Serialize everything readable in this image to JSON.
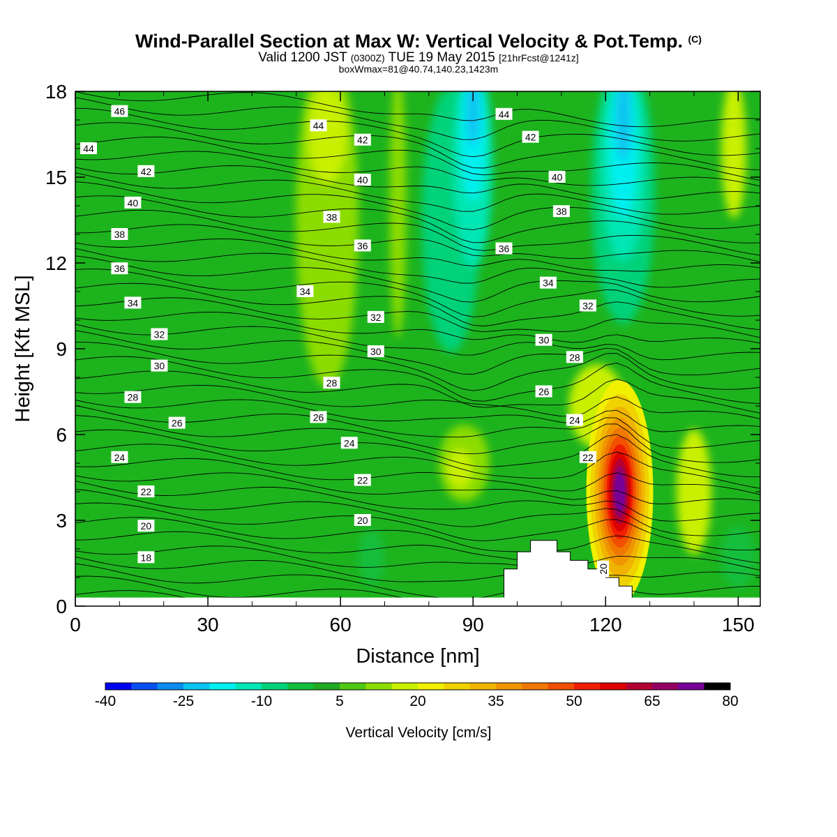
{
  "title": {
    "main": "Wind-Parallel Section at Max W: Vertical Velocity & Pot.Temp.",
    "copyright": "(C)",
    "valid_prefix": "Valid 1200 JST",
    "utc": "(0300Z)",
    "valid_date": "TUE 19 May 2015",
    "forecast": "[21hrFcst@1241z]",
    "box_info": "boxWmax=81@40.74,140.23,1423m"
  },
  "colors": {
    "background_field": "#1db31d",
    "palette": [
      "#0000f0",
      "#0a50f0",
      "#0a8cf0",
      "#0ac3f0",
      "#00f0f0",
      "#00e6b4",
      "#00d27a",
      "#14be3c",
      "#22aa22",
      "#50c814",
      "#8cdc00",
      "#c8f000",
      "#f0f000",
      "#f0d200",
      "#f0b400",
      "#f09600",
      "#f07800",
      "#f05000",
      "#f01e00",
      "#dc0000",
      "#b40032",
      "#960064",
      "#780096"
    ]
  },
  "chart_data": {
    "type": "heatmap",
    "xlabel": "Distance [nm]",
    "ylabel": "Height [Kft MSL]",
    "xlim": [
      0,
      155
    ],
    "ylim": [
      0,
      18
    ],
    "xticks": [
      0,
      30,
      60,
      90,
      120,
      150
    ],
    "yticks": [
      0,
      3,
      6,
      9,
      12,
      15,
      18
    ],
    "colorbar": {
      "label": "Vertical Velocity [cm/s]",
      "min": -40,
      "max": 80,
      "step": 5,
      "tick_labels": [
        -40,
        -25,
        -10,
        5,
        20,
        35,
        50,
        65,
        80
      ]
    },
    "features": [
      {
        "kind": "downdraft",
        "x": 90,
        "y_top": 18,
        "y_bottom": 8,
        "min_w": -30
      },
      {
        "kind": "downdraft",
        "x": 124,
        "y_top": 18,
        "y_bottom": 10,
        "min_w": -30
      },
      {
        "kind": "updraft",
        "x": 123,
        "y": 4.0,
        "max_w": 81
      },
      {
        "kind": "updraft",
        "x": 57,
        "y": 16,
        "max_w": 15
      },
      {
        "kind": "updraft",
        "x": 87,
        "y": 5,
        "max_w": 15
      }
    ],
    "terrain": [
      [
        97,
        0
      ],
      [
        97,
        1.3
      ],
      [
        100,
        1.3
      ],
      [
        100,
        1.9
      ],
      [
        103,
        1.9
      ],
      [
        103,
        2.3
      ],
      [
        109,
        2.3
      ],
      [
        109,
        1.9
      ],
      [
        112,
        1.9
      ],
      [
        112,
        1.6
      ],
      [
        116,
        1.6
      ],
      [
        116,
        1.3
      ],
      [
        120,
        1.3
      ],
      [
        120,
        1.0
      ],
      [
        123,
        1.0
      ],
      [
        123,
        0.7
      ],
      [
        126,
        0.7
      ],
      [
        126,
        0.3
      ],
      [
        126,
        0
      ]
    ],
    "contour_labels": [
      {
        "text": "46",
        "x": 10,
        "y": 17.3
      },
      {
        "text": "44",
        "x": 3,
        "y": 16.0
      },
      {
        "text": "42",
        "x": 16,
        "y": 15.2
      },
      {
        "text": "40",
        "x": 13,
        "y": 14.1
      },
      {
        "text": "38",
        "x": 10,
        "y": 13.0
      },
      {
        "text": "36",
        "x": 10,
        "y": 11.8
      },
      {
        "text": "34",
        "x": 13,
        "y": 10.6
      },
      {
        "text": "32",
        "x": 19,
        "y": 9.5
      },
      {
        "text": "30",
        "x": 19,
        "y": 8.4
      },
      {
        "text": "28",
        "x": 13,
        "y": 7.3
      },
      {
        "text": "26",
        "x": 23,
        "y": 6.4
      },
      {
        "text": "24",
        "x": 10,
        "y": 5.2
      },
      {
        "text": "22",
        "x": 16,
        "y": 4.0
      },
      {
        "text": "20",
        "x": 16,
        "y": 2.8
      },
      {
        "text": "18",
        "x": 16,
        "y": 1.7
      },
      {
        "text": "44",
        "x": 55,
        "y": 16.8
      },
      {
        "text": "42",
        "x": 65,
        "y": 16.3
      },
      {
        "text": "40",
        "x": 65,
        "y": 14.9
      },
      {
        "text": "38",
        "x": 58,
        "y": 13.6
      },
      {
        "text": "36",
        "x": 65,
        "y": 12.6
      },
      {
        "text": "34",
        "x": 52,
        "y": 11.0
      },
      {
        "text": "32",
        "x": 68,
        "y": 10.1
      },
      {
        "text": "30",
        "x": 68,
        "y": 8.9
      },
      {
        "text": "28",
        "x": 58,
        "y": 7.8
      },
      {
        "text": "26",
        "x": 55,
        "y": 6.6
      },
      {
        "text": "24",
        "x": 62,
        "y": 5.7
      },
      {
        "text": "22",
        "x": 65,
        "y": 4.4
      },
      {
        "text": "20",
        "x": 65,
        "y": 3.0
      },
      {
        "text": "44",
        "x": 97,
        "y": 17.2
      },
      {
        "text": "42",
        "x": 103,
        "y": 16.4
      },
      {
        "text": "40",
        "x": 109,
        "y": 15.0
      },
      {
        "text": "38",
        "x": 110,
        "y": 13.8
      },
      {
        "text": "36",
        "x": 97,
        "y": 12.5
      },
      {
        "text": "34",
        "x": 107,
        "y": 11.3
      },
      {
        "text": "32",
        "x": 116,
        "y": 10.5
      },
      {
        "text": "30",
        "x": 106,
        "y": 9.3
      },
      {
        "text": "28",
        "x": 113,
        "y": 8.7
      },
      {
        "text": "26",
        "x": 106,
        "y": 7.5
      },
      {
        "text": "24",
        "x": 113,
        "y": 6.5
      },
      {
        "text": "22",
        "x": 116,
        "y": 5.2
      },
      {
        "text": "20",
        "x": 119.5,
        "y": 1.3,
        "rotate": -90
      }
    ]
  }
}
